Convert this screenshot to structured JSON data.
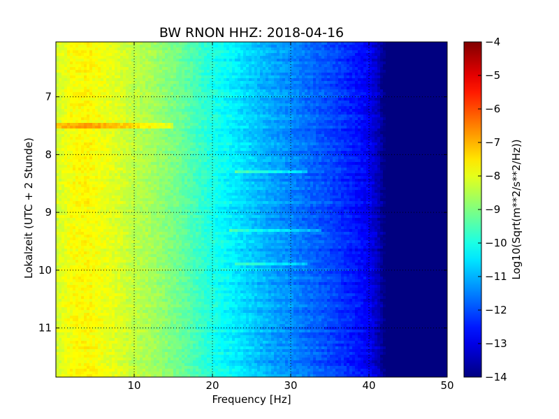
{
  "chart_data": {
    "type": "heatmap",
    "title": "BW RNON HHZ: 2018-04-16",
    "xlabel": "Frequency [Hz]",
    "ylabel": "Lokalzeit (UTC + 2 Stunde)",
    "xlim": [
      0,
      50
    ],
    "ylim": [
      6.05,
      11.85
    ],
    "y_inverted": true,
    "grid": true,
    "x_ticks": [
      10,
      20,
      30,
      40,
      50
    ],
    "x_tick_labels": [
      "10",
      "20",
      "30",
      "40",
      "50"
    ],
    "y_ticks": [
      7,
      8,
      9,
      10,
      11
    ],
    "y_tick_labels": [
      "7",
      "8",
      "9",
      "10",
      "11"
    ],
    "colormap": "jet",
    "colorbar": {
      "label": "Log10(Sqrt(m**2/s**2/Hz))",
      "range": [
        -14,
        -4
      ],
      "ticks": [
        -4,
        -5,
        -6,
        -7,
        -8,
        -9,
        -10,
        -11,
        -12,
        -13,
        -14
      ],
      "tick_labels": [
        "−4",
        "−5",
        "−6",
        "−7",
        "−8",
        "−9",
        "−10",
        "−11",
        "−12",
        "−13",
        "−14"
      ]
    },
    "profile": {
      "frequency_hz": [
        0,
        2,
        4,
        6,
        8,
        10,
        12,
        14,
        16,
        18,
        20,
        22,
        24,
        26,
        28,
        30,
        32,
        34,
        36,
        38,
        40,
        41,
        42,
        50
      ],
      "log_amplitude": [
        -8.2,
        -7.8,
        -7.7,
        -7.9,
        -8.1,
        -8.4,
        -8.6,
        -8.9,
        -9.2,
        -9.6,
        -10.0,
        -10.3,
        -10.6,
        -10.9,
        -11.2,
        -11.4,
        -11.7,
        -11.9,
        -12.2,
        -12.5,
        -12.9,
        -13.3,
        -14.0,
        -14.0
      ]
    },
    "features": [
      {
        "time": 7.5,
        "f_min": 0,
        "f_max": 15
      },
      {
        "time": 8.3,
        "f_min": 23,
        "f_max": 32
      },
      {
        "time": 9.3,
        "f_min": 22,
        "f_max": 34
      },
      {
        "time": 9.9,
        "f_min": 23,
        "f_max": 32
      }
    ]
  }
}
